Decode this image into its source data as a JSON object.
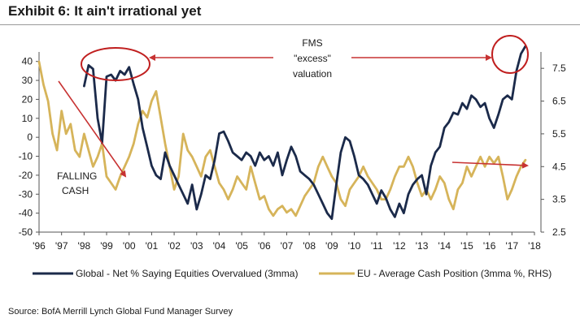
{
  "title": "Exhibit 6: It ain't irrational yet",
  "source": "Source: BofA Merrill Lynch Global Fund Manager Survey",
  "colors": {
    "global": "#1b2a4a",
    "eu": "#d6b45a",
    "arrow": "#c73232",
    "circle": "#c01f1f"
  },
  "chart_data": {
    "type": "line",
    "title": "Exhibit 6: It ain't irrational yet",
    "xlabel": "",
    "ylabel": "",
    "x_ticks": [
      "'96",
      "'97",
      "'98",
      "'99",
      "'00",
      "'01",
      "'02",
      "'03",
      "'04",
      "'05",
      "'06",
      "'07",
      "'08",
      "'09",
      "'10",
      "'11",
      "'12",
      "'13",
      "'14",
      "'15",
      "'16",
      "'17",
      "'18"
    ],
    "xlim": [
      1996,
      2018
    ],
    "ylim_left": [
      -50,
      45
    ],
    "ylim_right": [
      2.5,
      8.0
    ],
    "left_ticks": [
      -50,
      -40,
      -30,
      -20,
      -10,
      0,
      10,
      20,
      30,
      40
    ],
    "right_ticks": [
      "2.5",
      "3.5",
      "4.5",
      "5.5",
      "6.5",
      "7.5"
    ],
    "legend_position": "bottom",
    "series": [
      {
        "name": "Global - Net % Saying Equities Overvalued (3mma)",
        "axis": "left",
        "x": [
          1998.0,
          1998.2,
          1998.4,
          1998.6,
          1998.8,
          1999.0,
          1999.2,
          1999.4,
          1999.6,
          1999.8,
          2000.0,
          2000.2,
          2000.4,
          2000.6,
          2000.8,
          2001.0,
          2001.2,
          2001.4,
          2001.6,
          2001.8,
          2002.0,
          2002.2,
          2002.4,
          2002.6,
          2002.8,
          2003.0,
          2003.2,
          2003.4,
          2003.6,
          2003.8,
          2004.0,
          2004.2,
          2004.4,
          2004.6,
          2004.8,
          2005.0,
          2005.2,
          2005.4,
          2005.6,
          2005.8,
          2006.0,
          2006.2,
          2006.4,
          2006.6,
          2006.8,
          2007.0,
          2007.2,
          2007.4,
          2007.6,
          2007.8,
          2008.0,
          2008.2,
          2008.4,
          2008.6,
          2008.8,
          2009.0,
          2009.2,
          2009.4,
          2009.6,
          2009.8,
          2010.0,
          2010.2,
          2010.4,
          2010.6,
          2010.8,
          2011.0,
          2011.2,
          2011.4,
          2011.6,
          2011.8,
          2012.0,
          2012.2,
          2012.4,
          2012.6,
          2012.8,
          2013.0,
          2013.2,
          2013.4,
          2013.6,
          2013.8,
          2014.0,
          2014.2,
          2014.4,
          2014.6,
          2014.8,
          2015.0,
          2015.2,
          2015.4,
          2015.6,
          2015.8,
          2016.0,
          2016.2,
          2016.4,
          2016.6,
          2016.8,
          2017.0,
          2017.2,
          2017.4,
          2017.6
        ],
        "values": [
          27,
          38,
          36,
          10,
          -3,
          32,
          33,
          30,
          35,
          33,
          37,
          28,
          20,
          5,
          -5,
          -15,
          -20,
          -22,
          -8,
          -15,
          -20,
          -25,
          -30,
          -35,
          -25,
          -38,
          -30,
          -20,
          -22,
          -12,
          2,
          3,
          -2,
          -8,
          -10,
          -12,
          -8,
          -10,
          -15,
          -8,
          -12,
          -10,
          -15,
          -8,
          -20,
          -12,
          -5,
          -10,
          -18,
          -20,
          -22,
          -25,
          -30,
          -35,
          -40,
          -43,
          -25,
          -8,
          0,
          -2,
          -10,
          -20,
          -22,
          -25,
          -30,
          -35,
          -28,
          -32,
          -38,
          -42,
          -35,
          -40,
          -30,
          -25,
          -22,
          -20,
          -30,
          -15,
          -8,
          -5,
          5,
          8,
          13,
          12,
          18,
          15,
          22,
          20,
          16,
          18,
          10,
          5,
          12,
          20,
          22,
          20,
          35,
          44,
          48
        ]
      },
      {
        "name": "EU - Average Cash Position (3mma %, RHS)",
        "axis": "right",
        "x": [
          1996.0,
          1996.2,
          1996.4,
          1996.6,
          1996.8,
          1997.0,
          1997.2,
          1997.4,
          1997.6,
          1997.8,
          1998.0,
          1998.2,
          1998.4,
          1998.6,
          1998.8,
          1999.0,
          1999.2,
          1999.4,
          1999.6,
          1999.8,
          2000.0,
          2000.2,
          2000.4,
          2000.6,
          2000.8,
          2001.0,
          2001.2,
          2001.4,
          2001.6,
          2001.8,
          2002.0,
          2002.2,
          2002.4,
          2002.6,
          2002.8,
          2003.0,
          2003.2,
          2003.4,
          2003.6,
          2003.8,
          2004.0,
          2004.2,
          2004.4,
          2004.6,
          2004.8,
          2005.0,
          2005.2,
          2005.4,
          2005.6,
          2005.8,
          2006.0,
          2006.2,
          2006.4,
          2006.6,
          2006.8,
          2007.0,
          2007.2,
          2007.4,
          2007.6,
          2007.8,
          2008.0,
          2008.2,
          2008.4,
          2008.6,
          2008.8,
          2009.0,
          2009.2,
          2009.4,
          2009.6,
          2009.8,
          2010.0,
          2010.2,
          2010.4,
          2010.6,
          2010.8,
          2011.0,
          2011.2,
          2011.4,
          2011.6,
          2011.8,
          2012.0,
          2012.2,
          2012.4,
          2012.6,
          2012.8,
          2013.0,
          2013.2,
          2013.4,
          2013.6,
          2013.8,
          2014.0,
          2014.2,
          2014.4,
          2014.6,
          2014.8,
          2015.0,
          2015.2,
          2015.4,
          2015.6,
          2015.8,
          2016.0,
          2016.2,
          2016.4,
          2016.6,
          2016.8,
          2017.0,
          2017.2,
          2017.4,
          2017.6
        ],
        "values": [
          7.7,
          7.0,
          6.5,
          5.5,
          5.0,
          6.2,
          5.5,
          5.8,
          5.0,
          4.8,
          5.5,
          5.0,
          4.5,
          4.8,
          5.2,
          4.2,
          4.0,
          3.8,
          4.2,
          4.5,
          4.8,
          5.2,
          5.8,
          6.2,
          6.0,
          6.5,
          6.8,
          6.0,
          5.2,
          4.5,
          3.8,
          4.2,
          5.5,
          5.0,
          4.8,
          4.5,
          4.2,
          4.8,
          5.0,
          4.5,
          4.0,
          3.8,
          3.5,
          3.8,
          4.2,
          4.0,
          3.8,
          4.5,
          4.0,
          3.5,
          3.6,
          3.2,
          3.0,
          3.2,
          3.3,
          3.1,
          3.2,
          3.0,
          3.3,
          3.6,
          3.8,
          4.0,
          4.5,
          4.8,
          4.5,
          4.2,
          4.0,
          3.5,
          3.3,
          3.8,
          4.0,
          4.2,
          4.5,
          4.2,
          4.0,
          3.8,
          3.5,
          3.5,
          3.8,
          4.2,
          4.5,
          4.5,
          4.8,
          4.5,
          4.0,
          3.6,
          3.8,
          3.5,
          3.8,
          4.2,
          4.0,
          3.5,
          3.2,
          3.8,
          4.0,
          4.5,
          4.2,
          4.5,
          4.8,
          4.5,
          4.8,
          4.6,
          4.8,
          4.2,
          3.5,
          3.8,
          4.2,
          4.5,
          4.7
        ]
      }
    ],
    "annotations": {
      "fms_label": [
        "FMS",
        "\"excess\"",
        "valuation"
      ],
      "falling_label": [
        "FALLING",
        "CASH"
      ]
    },
    "legend": {
      "global": "Global - Net % Saying Equities Overvalued (3mma)",
      "eu": "EU - Average Cash Position (3mma %, RHS)"
    }
  }
}
